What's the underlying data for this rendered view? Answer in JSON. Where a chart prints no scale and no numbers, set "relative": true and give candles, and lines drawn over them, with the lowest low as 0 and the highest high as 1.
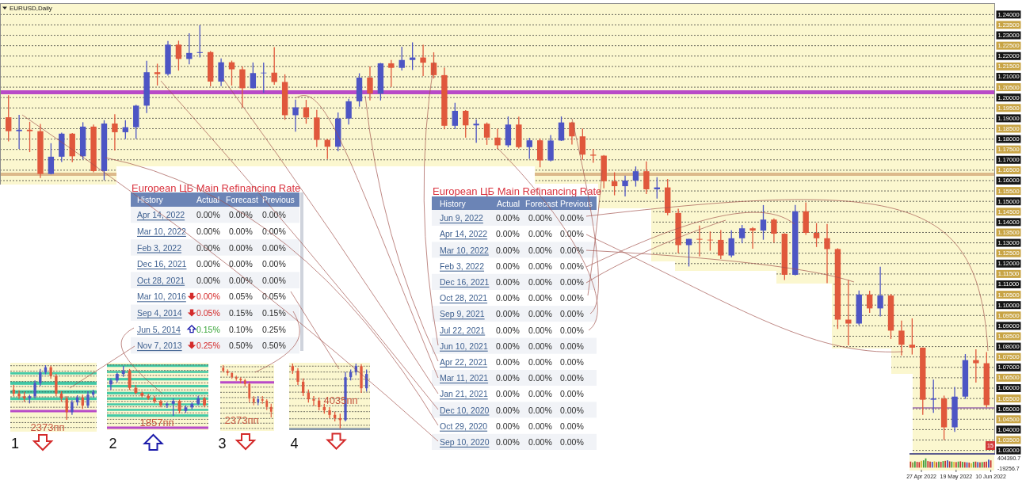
{
  "chart_data": [
    {
      "type": "candlestick",
      "title": "EURUSD,Daily",
      "categories": [
        null,
        null,
        null,
        null,
        null,
        null,
        null,
        null,
        null,
        null,
        null,
        null,
        null,
        null,
        null,
        null,
        null,
        null,
        null,
        null,
        null,
        null,
        null,
        null,
        null,
        null,
        null,
        null,
        null,
        null,
        null,
        null,
        null,
        null,
        null,
        null,
        null,
        null,
        null,
        null,
        null,
        null,
        null,
        null,
        null,
        null,
        null,
        null,
        null,
        null,
        null,
        null,
        null,
        null,
        null,
        null,
        null,
        null,
        null,
        null,
        null,
        null,
        null,
        null,
        null,
        null,
        null,
        null,
        null,
        null,
        null,
        null,
        null,
        null,
        null,
        null,
        null,
        null,
        null,
        null,
        null,
        null,
        null,
        null,
        null,
        null,
        null,
        null,
        null,
        null,
        null,
        null,
        null
      ],
      "ohlc": [
        [
          1.1905,
          1.2011,
          1.1789,
          1.1838
        ],
        [
          1.1838,
          1.1917,
          1.1753,
          1.1845
        ],
        [
          1.1845,
          1.1883,
          1.1737,
          1.1838
        ],
        [
          1.1838,
          1.1873,
          1.1612,
          1.1632
        ],
        [
          1.1632,
          1.178,
          1.163,
          1.1715
        ],
        [
          1.1715,
          1.1831,
          1.169,
          1.1826
        ],
        [
          1.1826,
          1.1829,
          1.1689,
          1.1717
        ],
        [
          1.1717,
          1.1881,
          1.1703,
          1.186
        ],
        [
          1.186,
          1.187,
          1.164,
          1.1646
        ],
        [
          1.1646,
          1.1891,
          1.1602,
          1.1875
        ],
        [
          1.1875,
          1.192,
          1.1745,
          1.1833
        ],
        [
          1.1833,
          1.1891,
          1.18,
          1.1857
        ],
        [
          1.1857,
          1.1965,
          1.1801,
          1.1961
        ],
        [
          1.1961,
          1.2177,
          1.1925,
          1.2122
        ],
        [
          1.2122,
          1.2163,
          1.2058,
          1.2113
        ],
        [
          1.2113,
          1.2273,
          1.2106,
          1.2255
        ],
        [
          1.2255,
          1.2274,
          1.213,
          1.2186
        ],
        [
          1.2186,
          1.231,
          1.216,
          1.2215
        ],
        [
          1.2215,
          1.2349,
          1.2193,
          1.2219
        ],
        [
          1.2219,
          1.2224,
          1.2054,
          1.2077
        ],
        [
          1.2077,
          1.2189,
          1.2055,
          1.217
        ],
        [
          1.217,
          1.2178,
          1.2058,
          1.2136
        ],
        [
          1.2136,
          1.215,
          1.1952,
          1.2045
        ],
        [
          1.2045,
          1.2169,
          1.2044,
          1.2118
        ],
        [
          1.2118,
          1.2169,
          1.2023,
          1.212
        ],
        [
          1.212,
          1.2243,
          1.2062,
          1.2075
        ],
        [
          1.2075,
          1.2112,
          1.1893,
          1.1915
        ],
        [
          1.1915,
          1.199,
          1.1836,
          1.1953
        ],
        [
          1.1953,
          1.1989,
          1.1874,
          1.1904
        ],
        [
          1.1904,
          1.1941,
          1.1762,
          1.1796
        ],
        [
          1.1796,
          1.18,
          1.1704,
          1.1763
        ],
        [
          1.1763,
          1.1928,
          1.1741,
          1.1899
        ],
        [
          1.1899,
          1.1994,
          1.187,
          1.1982
        ],
        [
          1.1982,
          1.2117,
          1.1956,
          1.2096
        ],
        [
          1.2096,
          1.215,
          1.1986,
          1.2019
        ],
        [
          1.2019,
          1.2167,
          1.1986,
          1.2165
        ],
        [
          1.2165,
          1.2181,
          1.2051,
          1.2143
        ],
        [
          1.2143,
          1.2245,
          1.213,
          1.2181
        ],
        [
          1.2181,
          1.2266,
          1.2133,
          1.2193
        ],
        [
          1.2193,
          1.2254,
          1.2104,
          1.2168
        ],
        [
          1.2168,
          1.2218,
          1.2092,
          1.2108
        ],
        [
          1.2108,
          1.2145,
          1.1847,
          1.1864
        ],
        [
          1.1864,
          1.1975,
          1.1848,
          1.1936
        ],
        [
          1.1936,
          1.194,
          1.1807,
          1.1866
        ],
        [
          1.1866,
          1.1895,
          1.1782,
          1.1874
        ],
        [
          1.1874,
          1.188,
          1.1772,
          1.1807
        ],
        [
          1.1807,
          1.185,
          1.1752,
          1.177
        ],
        [
          1.177,
          1.1909,
          1.176,
          1.187
        ],
        [
          1.187,
          1.1908,
          1.1754,
          1.1761
        ],
        [
          1.1761,
          1.1806,
          1.1705,
          1.1794
        ],
        [
          1.1794,
          1.1803,
          1.1664,
          1.1697
        ],
        [
          1.1697,
          1.1819,
          1.1692,
          1.1793
        ],
        [
          1.1793,
          1.1909,
          1.1791,
          1.188
        ],
        [
          1.188,
          1.1883,
          1.1774,
          1.1813
        ],
        [
          1.1813,
          1.185,
          1.17,
          1.1725
        ],
        [
          1.1725,
          1.1752,
          1.1686,
          1.172
        ],
        [
          1.172,
          1.1723,
          1.1563,
          1.1597
        ],
        [
          1.1597,
          1.164,
          1.1529,
          1.1573
        ],
        [
          1.1573,
          1.1624,
          1.1524,
          1.16
        ],
        [
          1.16,
          1.1668,
          1.1571,
          1.1645
        ],
        [
          1.1645,
          1.1692,
          1.1535,
          1.1558
        ],
        [
          1.1558,
          1.1616,
          1.1513,
          1.1567
        ],
        [
          1.1567,
          1.1608,
          1.1433,
          1.1444
        ],
        [
          1.1444,
          1.1464,
          1.125,
          1.1289
        ],
        [
          1.1289,
          1.1319,
          1.1186,
          1.1319
        ],
        [
          1.1319,
          1.1383,
          1.1234,
          1.1315
        ],
        [
          1.1315,
          1.1355,
          1.1262,
          1.1314
        ],
        [
          1.1314,
          1.1361,
          1.1222,
          1.1239
        ],
        [
          1.1239,
          1.136,
          1.123,
          1.1322
        ],
        [
          1.1322,
          1.1386,
          1.1298,
          1.137
        ],
        [
          1.137,
          1.1376,
          1.1272,
          1.1359
        ],
        [
          1.1359,
          1.1482,
          1.1315,
          1.1412
        ],
        [
          1.1412,
          1.1418,
          1.1301,
          1.1344
        ],
        [
          1.1344,
          1.1346,
          1.1121,
          1.1146
        ],
        [
          1.1146,
          1.1483,
          1.1143,
          1.1452
        ],
        [
          1.1452,
          1.1495,
          1.1338,
          1.1348
        ],
        [
          1.1348,
          1.1395,
          1.128,
          1.1322
        ],
        [
          1.1322,
          1.1391,
          1.1106,
          1.127
        ],
        [
          1.127,
          1.1274,
          1.0885,
          1.093
        ],
        [
          1.093,
          1.1121,
          1.0806,
          1.0911
        ],
        [
          1.0911,
          1.107,
          1.0903,
          1.1051
        ],
        [
          1.1051,
          1.1069,
          1.0963,
          1.0984
        ],
        [
          1.0984,
          1.1185,
          1.0945,
          1.1046
        ],
        [
          1.1046,
          1.1054,
          1.0837,
          1.0877
        ],
        [
          1.0877,
          1.0925,
          1.0757,
          1.0809
        ],
        [
          1.0809,
          1.0936,
          1.0762,
          1.0795
        ],
        [
          1.0795,
          1.0796,
          1.0471,
          1.0544
        ],
        [
          1.0544,
          1.0641,
          1.0481,
          1.055
        ],
        [
          1.055,
          1.0564,
          1.035,
          1.0411
        ],
        [
          1.0411,
          1.0606,
          1.0389,
          1.0559
        ],
        [
          1.0559,
          1.0764,
          1.0548,
          1.0735
        ],
        [
          1.0735,
          1.0787,
          1.0627,
          1.072
        ],
        [
          1.072,
          1.0774,
          1.0506,
          1.0518
        ]
      ],
      "colors": [
        "#e0583c",
        "#4d55c4",
        "#e0583c",
        "#e0583c",
        "#4d55c4",
        "#4d55c4",
        "#e0583c",
        "#4d55c4",
        "#e0583c",
        "#4d55c4",
        "#e0583c",
        "#4d55c4",
        "#4d55c4",
        "#4d55c4",
        "#e0583c",
        "#4d55c4",
        "#e0583c",
        "#4d55c4",
        "#4d55c4",
        "#e0583c",
        "#4d55c4",
        "#e0583c",
        "#e0583c",
        "#4d55c4",
        "#4d55c4",
        "#e0583c",
        "#e0583c",
        "#4d55c4",
        "#e0583c",
        "#e0583c",
        "#e0583c",
        "#4d55c4",
        "#4d55c4",
        "#4d55c4",
        "#e0583c",
        "#4d55c4",
        "#e0583c",
        "#4d55c4",
        "#4d55c4",
        "#e0583c",
        "#e0583c",
        "#e0583c",
        "#4d55c4",
        "#e0583c",
        "#4d55c4",
        "#e0583c",
        "#e0583c",
        "#4d55c4",
        "#e0583c",
        "#4d55c4",
        "#e0583c",
        "#4d55c4",
        "#4d55c4",
        "#e0583c",
        "#e0583c",
        "#e0583c",
        "#e0583c",
        "#e0583c",
        "#4d55c4",
        "#4d55c4",
        "#e0583c",
        "#4d55c4",
        "#e0583c",
        "#e0583c",
        "#4d55c4",
        "#e0583c",
        "#e0583c",
        "#e0583c",
        "#4d55c4",
        "#4d55c4",
        "#e0583c",
        "#4d55c4",
        "#e0583c",
        "#e0583c",
        "#4d55c4",
        "#e0583c",
        "#e0583c",
        "#e0583c",
        "#e0583c",
        "#e0583c",
        "#4d55c4",
        "#e0583c",
        "#4d55c4",
        "#e0583c",
        "#e0583c",
        "#e0583c",
        "#e0583c",
        "#4d55c4",
        "#e0583c",
        "#4d55c4",
        "#4d55c4",
        "#e0583c",
        "#e0583c"
      ],
      "ylim": [
        1.0287,
        1.2451
      ],
      "yticks": [
        {
          "value": 1.03,
          "label": "1.03000"
        },
        {
          "value": 1.035,
          "label": "1.03500"
        },
        {
          "value": 1.04,
          "label": "1.04000"
        },
        {
          "value": 1.045,
          "label": "1.04500"
        },
        {
          "value": 1.05,
          "label": "1.05000"
        },
        {
          "value": 1.055,
          "label": "1.05500"
        },
        {
          "value": 1.06,
          "label": "1.06000"
        },
        {
          "value": 1.065,
          "label": "1.06500"
        },
        {
          "value": 1.07,
          "label": "1.07000"
        },
        {
          "value": 1.075,
          "label": "1.07500"
        },
        {
          "value": 1.08,
          "label": "1.08000"
        },
        {
          "value": 1.085,
          "label": "1.08500"
        },
        {
          "value": 1.09,
          "label": "1.09000"
        },
        {
          "value": 1.095,
          "label": "1.09500"
        },
        {
          "value": 1.1,
          "label": "1.10000"
        },
        {
          "value": 1.105,
          "label": "1.10500"
        },
        {
          "value": 1.11,
          "label": "1.11000"
        },
        {
          "value": 1.115,
          "label": "1.11500"
        },
        {
          "value": 1.12,
          "label": "1.12000"
        },
        {
          "value": 1.125,
          "label": "1.12500"
        },
        {
          "value": 1.13,
          "label": "1.13000"
        },
        {
          "value": 1.135,
          "label": "1.13500"
        },
        {
          "value": 1.14,
          "label": "1.14000"
        },
        {
          "value": 1.145,
          "label": "1.14500"
        },
        {
          "value": 1.15,
          "label": "1.15000"
        },
        {
          "value": 1.155,
          "label": "1.15500"
        },
        {
          "value": 1.16,
          "label": "1.16000"
        },
        {
          "value": 1.165,
          "label": "1.16500"
        },
        {
          "value": 1.17,
          "label": "1.17000"
        },
        {
          "value": 1.175,
          "label": "1.17500"
        },
        {
          "value": 1.18,
          "label": "1.18000"
        },
        {
          "value": 1.185,
          "label": "1.18500"
        },
        {
          "value": 1.19,
          "label": "1.19000"
        },
        {
          "value": 1.195,
          "label": "1.19500"
        },
        {
          "value": 1.2,
          "label": "1.20000"
        },
        {
          "value": 1.205,
          "label": "1.20500"
        },
        {
          "value": 1.21,
          "label": "1.21000"
        },
        {
          "value": 1.215,
          "label": "1.21500"
        },
        {
          "value": 1.22,
          "label": "1.22000"
        },
        {
          "value": 1.225,
          "label": "1.22500"
        },
        {
          "value": 1.23,
          "label": "1.23000"
        },
        {
          "value": 1.235,
          "label": "1.23500"
        },
        {
          "value": 1.24,
          "label": "1.24000"
        }
      ],
      "grid": "y",
      "tick_labels": "y",
      "ref_lines": [
        {
          "axis": "y",
          "value": 1.2025,
          "color": "#b84ac8"
        },
        {
          "axis": "y",
          "value": 1.163,
          "color": "#dcb98a"
        },
        {
          "axis": "y",
          "value": 1.0505,
          "color": "#9a6aa8"
        }
      ],
      "annotations": [
        "15"
      ]
    },
    {
      "type": "bar",
      "categories": [
        null,
        null,
        null,
        null,
        null,
        "27 Apr 2022",
        null,
        null,
        null,
        null,
        null,
        null,
        null,
        null,
        null,
        null,
        null,
        null,
        null,
        null,
        null,
        "19 May 2022",
        null,
        null,
        null,
        null,
        null,
        null,
        null,
        null,
        null,
        null,
        null,
        null,
        null,
        null,
        null,
        "10 Jun 2022"
      ],
      "values": [
        250000,
        220000,
        260000,
        240000,
        230000,
        280000,
        300000,
        380000,
        270000,
        250000,
        240000,
        260000,
        230000,
        250000,
        240000,
        270000,
        280000,
        300000,
        260000,
        250000,
        240000,
        230000,
        250000,
        260000,
        240000,
        230000,
        220000,
        210000,
        180000,
        240000,
        250000,
        230000,
        220000,
        230000,
        240000,
        250000,
        330000,
        300000
      ],
      "colors": [
        "#c83030",
        "#8a8a30",
        "#3a9a3a",
        "#c83030",
        "#c83030",
        "#d8b830",
        "#3a9a3a",
        "#3a9a3a",
        "#c83030",
        "#c83030",
        "#3a4fc0",
        "#d8b830",
        "#c83030",
        "#3a9a3a",
        "#c83030",
        "#3a9a3a",
        "#c83030",
        "#3a4fc0",
        "#c83030",
        "#3a9a3a",
        "#d8b830",
        "#c83030",
        "#3a9a3a",
        "#c83030",
        "#3a9a3a",
        "#c83030",
        "#3a4fc0",
        "#c83030",
        "#d8b830",
        "#3a9a3a",
        "#c83030",
        "#3a4fc0",
        "#c83030",
        "#3a9a3a",
        "#c83030",
        "#c83030",
        "#3a4fc0",
        "#c83030"
      ],
      "ylim": [
        -19256.7,
        404390.7
      ],
      "yticks": [
        404390.7,
        -19256.7
      ]
    },
    {
      "type": "other",
      "title": "European ЦБ Main Refinancing Rate",
      "annotations": [
        "History",
        "Actual",
        "Forecast",
        "Previous",
        "Apr 14, 2022",
        "0.00%",
        "0.00%",
        "0.00%",
        "Mar 10, 2022",
        "0.00%",
        "0.00%",
        "0.00%",
        "Feb 3, 2022",
        "0.00%",
        "0.00%",
        "0.00%",
        "Dec 16, 2021",
        "0.00%",
        "0.00%",
        "0.00%",
        "Oct 28, 2021",
        "0.00%",
        "0.00%",
        "0.00%",
        "Mar 10, 2016",
        "0.00%",
        "0.05%",
        "0.05%",
        "Sep 4, 2014",
        "0.05%",
        "0.15%",
        "0.15%",
        "Jun 5, 2014",
        "0.15%",
        "0.10%",
        "0.25%",
        "Nov 7, 2013",
        "0.25%",
        "0.50%",
        "0.50%"
      ]
    },
    {
      "type": "other",
      "title": "European ЦБ Main Refinancing Rate",
      "annotations": [
        "History",
        "Actual",
        "Forecast",
        "Previous",
        "Jun 9, 2022",
        "0.00%",
        "0.00%",
        "0.00%",
        "Apr 14, 2022",
        "0.00%",
        "0.00%",
        "0.00%",
        "Mar 10, 2022",
        "0.00%",
        "0.00%",
        "0.00%",
        "Feb 3, 2022",
        "0.00%",
        "0.00%",
        "0.00%",
        "Dec 16, 2021",
        "0.00%",
        "0.00%",
        "0.00%",
        "Oct 28, 2021",
        "0.00%",
        "0.00%",
        "0.00%",
        "Sep 9, 2021",
        "0.00%",
        "0.00%",
        "0.00%",
        "Jul 22, 2021",
        "0.00%",
        "0.00%",
        "0.00%",
        "Jun 10, 2021",
        "0.00%",
        "0.00%",
        "0.00%",
        "Apr 22, 2021",
        "0.00%",
        "0.00%",
        "0.00%",
        "Mar 11, 2021",
        "0.00%",
        "0.00%",
        "0.00%",
        "Jan 21, 2021",
        "0.00%",
        "0.00%",
        "0.00%",
        "Dec 10, 2020",
        "0.00%",
        "0.00%",
        "0.00%",
        "Oct 29, 2020",
        "0.00%",
        "0.00%",
        "0.00%",
        "Sep 10, 2020",
        "0.00%",
        "0.00%",
        "0.00%"
      ]
    },
    {
      "type": "candlestick",
      "relative": true,
      "categories": [
        null,
        null,
        null,
        null,
        null,
        null,
        null,
        null,
        null,
        null,
        null,
        null,
        null,
        null,
        null,
        null
      ],
      "ohlc": [
        [
          0.55,
          0.64,
          0.43,
          0.48
        ],
        [
          0.48,
          0.54,
          0.38,
          0.43
        ],
        [
          0.43,
          0.51,
          0.33,
          0.39
        ],
        [
          0.39,
          0.46,
          0.3,
          0.43
        ],
        [
          0.43,
          0.72,
          0.39,
          0.67
        ],
        [
          0.67,
          0.93,
          0.62,
          0.87
        ],
        [
          0.87,
          1,
          0.83,
          0.96
        ],
        [
          0.96,
          0.99,
          0.75,
          0.8
        ],
        [
          0.8,
          0.84,
          0.43,
          0.48
        ],
        [
          0.48,
          0.52,
          0.33,
          0.39
        ],
        [
          0.39,
          0.43,
          0,
          0.14
        ],
        [
          0.14,
          0.36,
          0.09,
          0.32
        ],
        [
          0.32,
          0.45,
          0.26,
          0.41
        ],
        [
          0.41,
          0.46,
          0.2,
          0.26
        ],
        [
          0.26,
          0.52,
          0.22,
          0.46
        ],
        [
          0.46,
          0.55,
          0.41,
          0.51
        ]
      ],
      "colors": [
        "#e0583c",
        "#e0583c",
        "#e0583c",
        "#4d55c4",
        "#4d55c4",
        "#4d55c4",
        "#4d55c4",
        "#e0583c",
        "#e0583c",
        "#e0583c",
        "#e0583c",
        "#4d55c4",
        "#4d55c4",
        "#e0583c",
        "#4d55c4",
        "#4d55c4"
      ],
      "bands": [
        {
          "axis": "y",
          "from": 0.83,
          "to": 0.87,
          "color": "#43c9a6"
        },
        {
          "axis": "y",
          "from": 0.64,
          "to": 0.7,
          "color": "#43c9a6"
        },
        {
          "axis": "y",
          "from": 0.48,
          "to": 0.54,
          "color": "#43c9a6"
        },
        {
          "axis": "y",
          "from": 0.36,
          "to": 0.41,
          "color": "#43c9a6"
        }
      ],
      "ref_lines": [
        {
          "axis": "y",
          "value": 0.16,
          "color": "#b84ac8"
        },
        {
          "axis": "y",
          "value": 0.99,
          "color": "#333333",
          "line_style": "dashed"
        },
        {
          "axis": "y",
          "value": 0.89,
          "color": "#333333",
          "line_style": "dashed"
        },
        {
          "axis": "y",
          "value": 0.8,
          "color": "#333333",
          "line_style": "dashed"
        },
        {
          "axis": "y",
          "value": 0.7,
          "color": "#333333",
          "line_style": "dashed"
        },
        {
          "axis": "y",
          "value": 0.61,
          "color": "#333333",
          "line_style": "dashed"
        },
        {
          "axis": "y",
          "value": 0.51,
          "color": "#333333",
          "line_style": "dashed"
        },
        {
          "axis": "y",
          "value": 0.42,
          "color": "#333333",
          "line_style": "dashed"
        },
        {
          "axis": "y",
          "value": 0.33,
          "color": "#333333",
          "line_style": "dashed"
        },
        {
          "axis": "y",
          "value": 0.23,
          "color": "#333333",
          "line_style": "dashed"
        },
        {
          "axis": "y",
          "value": 0.04,
          "color": "#333333",
          "line_style": "dashed"
        },
        {
          "axis": "y",
          "value": -0.05,
          "color": "#333333",
          "line_style": "dashed"
        },
        {
          "axis": "y",
          "value": -0.14,
          "color": "#333333",
          "line_style": "dashed"
        }
      ],
      "annotations": [
        "1",
        "2373пп"
      ]
    },
    {
      "type": "candlestick",
      "relative": true,
      "categories": [
        null,
        null,
        null,
        null,
        null,
        null,
        null,
        null,
        null,
        null,
        null,
        null,
        null,
        null,
        null,
        null
      ],
      "ohlc": [
        [
          0.63,
          0.75,
          0.52,
          0.71
        ],
        [
          0.71,
          0.87,
          0.67,
          0.84
        ],
        [
          0.84,
          1,
          0.78,
          0.9
        ],
        [
          0.9,
          0.94,
          0.52,
          0.56
        ],
        [
          0.56,
          0.62,
          0.43,
          0.46
        ],
        [
          0.46,
          0.49,
          0.37,
          0.4
        ],
        [
          0.4,
          0.44,
          0.32,
          0.35
        ],
        [
          0.35,
          0.4,
          0.25,
          0.29
        ],
        [
          0.29,
          0.32,
          0.17,
          0.21
        ],
        [
          0.21,
          0.27,
          0.16,
          0.24
        ],
        [
          0.24,
          0.35,
          0,
          0.3
        ],
        [
          0.3,
          0.33,
          0.05,
          0.1
        ],
        [
          0.1,
          0.21,
          0.06,
          0.17
        ],
        [
          0.17,
          0.27,
          0.13,
          0.24
        ],
        [
          0.24,
          0.4,
          0.21,
          0.35
        ],
        [
          0.35,
          0.38,
          0.17,
          0.21
        ]
      ],
      "colors": [
        "#4d55c4",
        "#4d55c4",
        "#4d55c4",
        "#e0583c",
        "#e0583c",
        "#e0583c",
        "#e0583c",
        "#e0583c",
        "#e0583c",
        "#4d55c4",
        "#4d55c4",
        "#e0583c",
        "#4d55c4",
        "#4d55c4",
        "#4d55c4",
        "#e0583c"
      ],
      "bands": [
        {
          "axis": "y",
          "from": 0.98,
          "to": 1.03,
          "color": "#43c9a6"
        },
        {
          "axis": "y",
          "from": 0.86,
          "to": 0.9,
          "color": "#43c9a6"
        },
        {
          "axis": "y",
          "from": 0.71,
          "to": 0.76,
          "color": "#43c9a6"
        },
        {
          "axis": "y",
          "from": 0.57,
          "to": 0.62,
          "color": "#43c9a6"
        },
        {
          "axis": "y",
          "from": 0.43,
          "to": 0.48,
          "color": "#43c9a6"
        },
        {
          "axis": "y",
          "from": 0.32,
          "to": 0.37,
          "color": "#43c9a6"
        },
        {
          "axis": "y",
          "from": 0.21,
          "to": 0.25,
          "color": "#43c9a6"
        },
        {
          "axis": "y",
          "from": 0.1,
          "to": 0.14,
          "color": "#43c9a6"
        },
        {
          "axis": "y",
          "from": -0.02,
          "to": 0.03,
          "color": "#43c9a6"
        }
      ],
      "ref_lines": [
        {
          "axis": "y",
          "value": -0.24,
          "color": "#b84ac8"
        },
        {
          "axis": "y",
          "value": 1.02,
          "color": "#333333",
          "line_style": "dashed"
        },
        {
          "axis": "y",
          "value": 0.91,
          "color": "#333333",
          "line_style": "dashed"
        },
        {
          "axis": "y",
          "value": 0.81,
          "color": "#333333",
          "line_style": "dashed"
        },
        {
          "axis": "y",
          "value": 0.66,
          "color": "#333333",
          "line_style": "dashed"
        },
        {
          "axis": "y",
          "value": 0.52,
          "color": "#333333",
          "line_style": "dashed"
        },
        {
          "axis": "y",
          "value": 0.4,
          "color": "#333333",
          "line_style": "dashed"
        },
        {
          "axis": "y",
          "value": 0.29,
          "color": "#333333",
          "line_style": "dashed"
        },
        {
          "axis": "y",
          "value": 0.18,
          "color": "#333333",
          "line_style": "dashed"
        },
        {
          "axis": "y",
          "value": 0.06,
          "color": "#333333",
          "line_style": "dashed"
        },
        {
          "axis": "y",
          "value": -0.07,
          "color": "#333333",
          "line_style": "dashed"
        },
        {
          "axis": "y",
          "value": -0.15,
          "color": "#333333",
          "line_style": "dashed"
        }
      ],
      "annotations": [
        "2",
        "1857пп"
      ]
    },
    {
      "type": "candlestick",
      "relative": true,
      "categories": [
        null,
        null,
        null,
        null,
        null,
        null,
        null,
        null,
        null,
        null,
        null,
        null
      ],
      "ohlc": [
        [
          0.95,
          1,
          0.86,
          0.89
        ],
        [
          0.89,
          0.92,
          0.8,
          0.85
        ],
        [
          0.85,
          0.86,
          0.74,
          0.77
        ],
        [
          0.77,
          0.8,
          0.7,
          0.74
        ],
        [
          0.74,
          0.77,
          0.65,
          0.71
        ],
        [
          0.71,
          0.74,
          0.59,
          0.64
        ],
        [
          0.64,
          0.68,
          0.29,
          0.36
        ],
        [
          0.36,
          0.41,
          0.23,
          0.29
        ],
        [
          0.29,
          0.41,
          0.23,
          0.35
        ],
        [
          0.35,
          0.41,
          0.26,
          0.32
        ],
        [
          0.32,
          0.35,
          0.14,
          0.2
        ],
        [
          0.2,
          0.26,
          0,
          0.11
        ]
      ],
      "colors": [
        "#e0583c",
        "#e0583c",
        "#e0583c",
        "#e0583c",
        "#e0583c",
        "#e0583c",
        "#e0583c",
        "#e0583c",
        "#4d55c4",
        "#e0583c",
        "#e0583c",
        "#e0583c"
      ],
      "ref_lines": [
        {
          "axis": "y",
          "value": 0.67,
          "color": "#b84ac8"
        },
        {
          "axis": "y",
          "value": 0.97,
          "color": "#333333",
          "line_style": "dashed"
        },
        {
          "axis": "y",
          "value": 0.87,
          "color": "#333333",
          "line_style": "dashed"
        },
        {
          "axis": "y",
          "value": 0.77,
          "color": "#333333",
          "line_style": "dashed"
        },
        {
          "axis": "y",
          "value": 0.58,
          "color": "#333333",
          "line_style": "dashed"
        },
        {
          "axis": "y",
          "value": 0.48,
          "color": "#333333",
          "line_style": "dashed"
        },
        {
          "axis": "y",
          "value": 0.38,
          "color": "#333333",
          "line_style": "dashed"
        },
        {
          "axis": "y",
          "value": 0.28,
          "color": "#333333",
          "line_style": "dashed"
        },
        {
          "axis": "y",
          "value": 0.18,
          "color": "#333333",
          "line_style": "dashed"
        },
        {
          "axis": "y",
          "value": 0.08,
          "color": "#333333",
          "line_style": "dashed"
        },
        {
          "axis": "y",
          "value": -0.02,
          "color": "#333333",
          "line_style": "dashed"
        },
        {
          "axis": "y",
          "value": -0.11,
          "color": "#333333",
          "line_style": "dashed"
        },
        {
          "axis": "y",
          "value": -0.21,
          "color": "#333333",
          "line_style": "dashed"
        }
      ],
      "annotations": [
        "3",
        "2373пп"
      ]
    },
    {
      "type": "candlestick",
      "relative": true,
      "categories": [
        null,
        null,
        null,
        null,
        null,
        null,
        null,
        null,
        null,
        null,
        null,
        null,
        null,
        null,
        null
      ],
      "ohlc": [
        [
          0.96,
          1,
          0.84,
          0.89
        ],
        [
          0.89,
          0.93,
          0.67,
          0.72
        ],
        [
          0.72,
          0.77,
          0.5,
          0.55
        ],
        [
          0.55,
          0.6,
          0.4,
          0.45
        ],
        [
          0.45,
          0.5,
          0.35,
          0.43
        ],
        [
          0.43,
          0.48,
          0.28,
          0.33
        ],
        [
          0.33,
          0.38,
          0.23,
          0.28
        ],
        [
          0.28,
          0.33,
          0.16,
          0.21
        ],
        [
          0.21,
          0.26,
          0.11,
          0.16
        ],
        [
          0.16,
          0.23,
          0,
          0.13
        ],
        [
          0.13,
          0.87,
          0.11,
          0.79
        ],
        [
          0.79,
          0.91,
          0.74,
          0.87
        ],
        [
          0.87,
          1,
          0.82,
          0.96
        ],
        [
          0.96,
          0.99,
          0.55,
          0.62
        ],
        [
          0.62,
          0.91,
          0.57,
          0.84
        ]
      ],
      "colors": [
        "#e0583c",
        "#e0583c",
        "#e0583c",
        "#e0583c",
        "#e0583c",
        "#e0583c",
        "#e0583c",
        "#e0583c",
        "#e0583c",
        "#e0583c",
        "#4d55c4",
        "#4d55c4",
        "#4d55c4",
        "#e0583c",
        "#4d55c4"
      ],
      "ref_lines": [
        {
          "axis": "y",
          "value": -0.01,
          "color": "#8a9aaa"
        },
        {
          "axis": "y",
          "value": 0.96,
          "color": "#333333",
          "line_style": "dashed"
        },
        {
          "axis": "y",
          "value": 0.87,
          "color": "#333333",
          "line_style": "dashed"
        },
        {
          "axis": "y",
          "value": 0.76,
          "color": "#333333",
          "line_style": "dashed"
        },
        {
          "axis": "y",
          "value": 0.66,
          "color": "#333333",
          "line_style": "dashed"
        },
        {
          "axis": "y",
          "value": 0.56,
          "color": "#333333",
          "line_style": "dashed"
        },
        {
          "axis": "y",
          "value": 0.46,
          "color": "#333333",
          "line_style": "dashed"
        },
        {
          "axis": "y",
          "value": 0.35,
          "color": "#333333",
          "line_style": "dashed"
        },
        {
          "axis": "y",
          "value": 0.26,
          "color": "#333333",
          "line_style": "dashed"
        },
        {
          "axis": "y",
          "value": 0.15,
          "color": "#333333",
          "line_style": "dashed"
        },
        {
          "axis": "y",
          "value": 0.05,
          "color": "#333333",
          "line_style": "dashed"
        }
      ],
      "annotations": [
        "4",
        "4035пп"
      ]
    }
  ]
}
